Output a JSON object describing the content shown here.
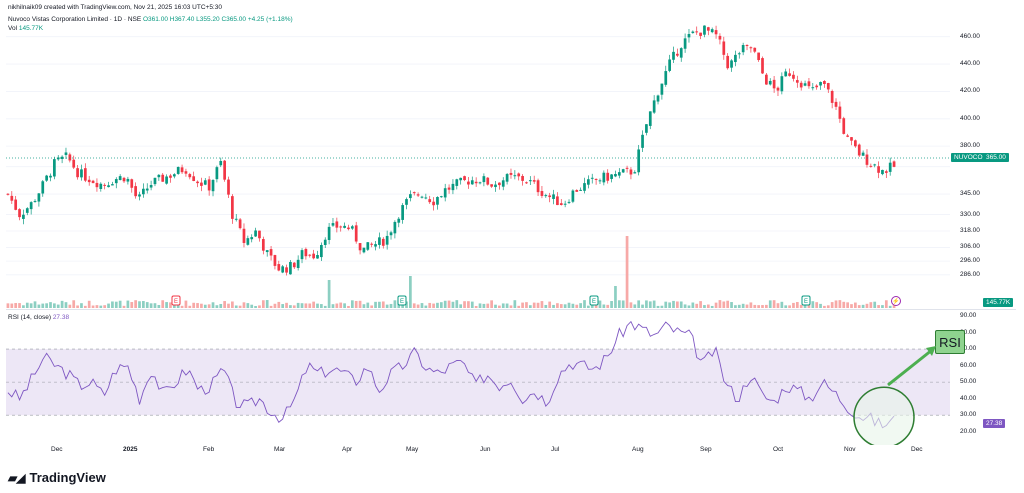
{
  "header": {
    "creator_line": "nikhilnaik09 created with TradingView.com, Nov 21, 2025 16:03 UTC+5:30",
    "symbol_line_prefix": "Nuvoco Vistas Corporation Limited · 1D · NSE",
    "ohlc": {
      "open": "O361.00",
      "high": "H367.40",
      "low": "L355.20",
      "close": "C365.00",
      "change": "+4.25 (+1.18%)"
    },
    "volume_label": "Vol",
    "volume_value": "145.77K"
  },
  "price_axis": {
    "ticks": [
      "460.00",
      "440.00",
      "420.00",
      "400.00",
      "380.00",
      "365.00",
      "345.00",
      "330.00",
      "318.00",
      "306.00",
      "296.00",
      "286.00"
    ],
    "last_price_tag": "365.00",
    "symbol_tag": "NUVOCO",
    "volume_tag": "145.77K"
  },
  "rsi": {
    "title": "RSI (14, close)",
    "value": "27.38",
    "ticks": [
      "90.00",
      "80.00",
      "70.00",
      "60.00",
      "50.00",
      "40.00",
      "30.00",
      "20.00"
    ],
    "value_tag": "27.38",
    "callout_text": "RSI"
  },
  "time_axis": [
    "Dec",
    "2025",
    "Feb",
    "Mar",
    "Apr",
    "May",
    "Jun",
    "Jul",
    "Aug",
    "Sep",
    "Oct",
    "Nov",
    "Dec"
  ],
  "event_markers": [
    {
      "kind": "earnings",
      "label": "E",
      "color": "#f23645"
    },
    {
      "kind": "earnings",
      "label": "E",
      "color": "#089981"
    },
    {
      "kind": "earnings",
      "label": "E",
      "color": "#089981"
    },
    {
      "kind": "earnings",
      "label": "E",
      "color": "#089981"
    },
    {
      "kind": "split",
      "label": "⚡",
      "color": "#9c27b0"
    }
  ],
  "footer": {
    "brand": "TradingView"
  },
  "colors": {
    "up": "#089981",
    "down": "#f23645",
    "rsi_line": "#7e57c2",
    "rsi_band": "#ede7f6",
    "accent": "#2962ff"
  },
  "chart_data": {
    "type": "candlestick",
    "title": "Nuvoco Vistas Corporation Limited · 1D · NSE",
    "y_range": [
      280,
      470
    ],
    "rsi_range": [
      15,
      90
    ],
    "rsi_levels": [
      70,
      50,
      30
    ],
    "price_path": [
      345,
      330,
      338,
      352,
      368,
      372,
      360,
      356,
      352,
      356,
      358,
      340,
      352,
      356,
      360,
      364,
      355,
      350,
      368,
      330,
      310,
      318,
      300,
      290,
      292,
      302,
      300,
      318,
      322,
      320,
      304,
      308,
      312,
      330,
      342,
      346,
      340,
      348,
      352,
      355,
      356,
      352,
      356,
      357,
      355,
      348,
      342,
      338,
      348,
      352,
      356,
      358,
      360,
      362,
      395,
      420,
      440,
      455,
      462,
      465,
      460,
      438,
      450,
      452,
      430,
      420,
      435,
      428,
      420,
      426,
      410,
      385,
      375,
      368,
      362,
      365
    ],
    "rsi_path": [
      45,
      40,
      52,
      65,
      60,
      55,
      48,
      50,
      42,
      58,
      60,
      40,
      58,
      42,
      50,
      58,
      45,
      48,
      58,
      38,
      35,
      40,
      32,
      28,
      40,
      60,
      55,
      58,
      56,
      50,
      60,
      45,
      55,
      60,
      68,
      58,
      55,
      60,
      62,
      48,
      55,
      48,
      52,
      40,
      45,
      38,
      55,
      62,
      60,
      58,
      65,
      78,
      86,
      82,
      78,
      84,
      80,
      78,
      60,
      70,
      48,
      40,
      55,
      42,
      38,
      48,
      45,
      40,
      50,
      44,
      36,
      30,
      28,
      24,
      27
    ]
  }
}
